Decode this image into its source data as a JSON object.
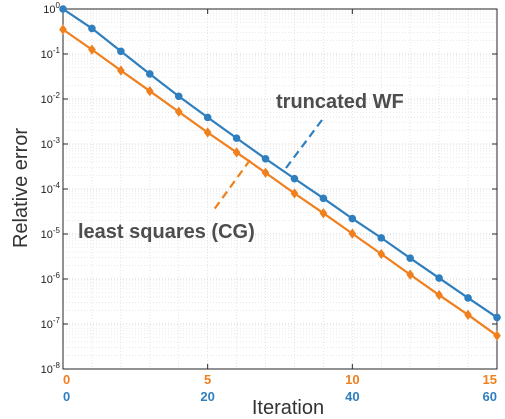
{
  "chart_data": {
    "type": "line",
    "xlabel": "Iteration",
    "ylabel": "Relative error",
    "yscale": "log",
    "ylim": [
      1e-08,
      1
    ],
    "grid": true,
    "y_ticks": [
      {
        "value": 1,
        "base": "10",
        "exp": "0"
      },
      {
        "value": 0.1,
        "base": "10",
        "exp": "-1"
      },
      {
        "value": 0.01,
        "base": "10",
        "exp": "-2"
      },
      {
        "value": 0.001,
        "base": "10",
        "exp": "-3"
      },
      {
        "value": 0.0001,
        "base": "10",
        "exp": "-4"
      },
      {
        "value": 1e-05,
        "base": "10",
        "exp": "-5"
      },
      {
        "value": 1e-06,
        "base": "10",
        "exp": "-6"
      },
      {
        "value": 1e-07,
        "base": "10",
        "exp": "-7"
      },
      {
        "value": 1e-08,
        "base": "10",
        "exp": "-8"
      }
    ],
    "x_axis_top": {
      "xlim": [
        0,
        15
      ],
      "ticks": [
        "0",
        "5",
        "10",
        "15"
      ],
      "color": "#f07f1e"
    },
    "x_axis_bottom": {
      "xlim": [
        0,
        60
      ],
      "ticks": [
        "0",
        "20",
        "40",
        "60"
      ],
      "color": "#2f7fbf"
    },
    "series": [
      {
        "name": "truncated WF",
        "color": "#2f7fbf",
        "marker": "circle",
        "axis": "bottom",
        "x": [
          0,
          4,
          8,
          12,
          16,
          20,
          24,
          28,
          32,
          36,
          40,
          44,
          48,
          52,
          56,
          60
        ],
        "y": [
          1.0,
          0.37,
          0.115,
          0.036,
          0.0115,
          0.0039,
          0.00135,
          0.00047,
          0.00017,
          6.2e-05,
          2.2e-05,
          8.2e-06,
          2.9e-06,
          1.05e-06,
          3.8e-07,
          1.4e-07
        ]
      },
      {
        "name": "least squares (CG)",
        "color": "#f07f1e",
        "marker": "diamond",
        "axis": "top",
        "x": [
          0,
          1,
          2,
          3,
          4,
          5,
          6,
          7,
          8,
          9,
          10,
          11,
          12,
          13,
          14,
          15
        ],
        "y": [
          0.35,
          0.125,
          0.043,
          0.015,
          0.0052,
          0.0018,
          0.00065,
          0.00023,
          8e-05,
          2.9e-05,
          1.02e-05,
          3.6e-06,
          1.25e-06,
          4.4e-07,
          1.6e-07,
          5.5e-08
        ]
      }
    ],
    "annotations": [
      {
        "text": "truncated WF",
        "series": "truncated WF"
      },
      {
        "text": "least squares (CG)",
        "series": "least squares (CG)"
      }
    ]
  }
}
